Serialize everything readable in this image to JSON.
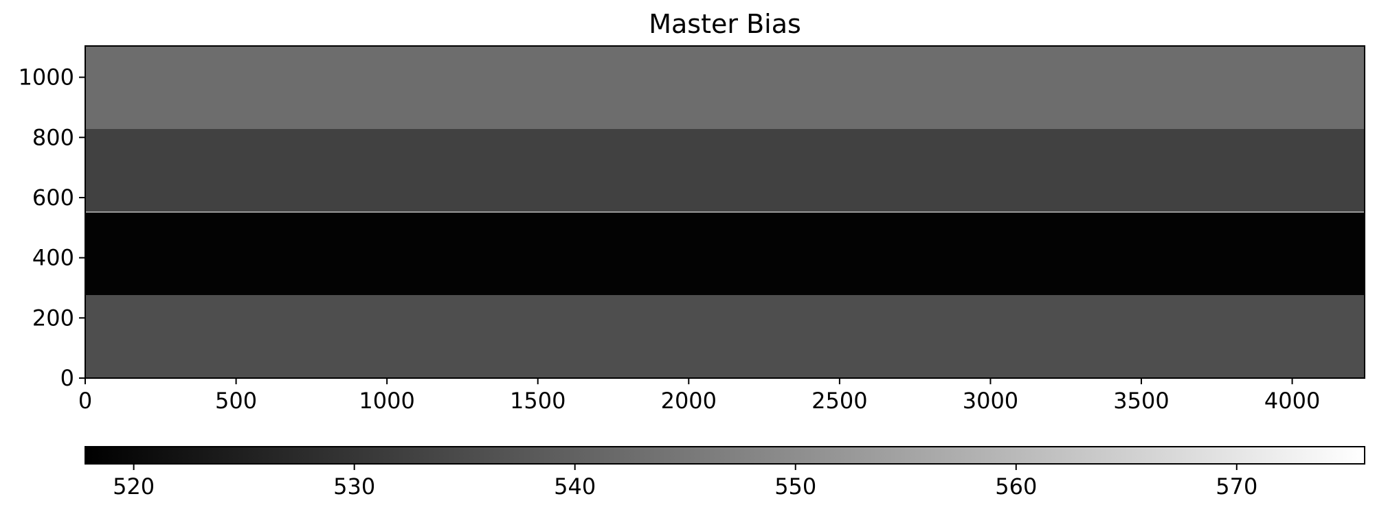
{
  "chart_data": {
    "type": "heatmap",
    "title": "Master Bias",
    "colormap": "gray",
    "xlim": [
      0,
      4240
    ],
    "ylim": [
      0,
      1104
    ],
    "xticks": [
      0,
      500,
      1000,
      1500,
      2000,
      2500,
      3000,
      3500,
      4000
    ],
    "yticks": [
      0,
      200,
      400,
      600,
      800,
      1000
    ],
    "x_tick_labels": [
      "0",
      "500",
      "1000",
      "1500",
      "2000",
      "2500",
      "3000",
      "3500",
      "4000"
    ],
    "y_tick_labels": [
      "0",
      "200",
      "400",
      "600",
      "800",
      "1000"
    ],
    "bands": [
      {
        "y0": 0,
        "y1": 276,
        "value": 535.5
      },
      {
        "y0": 276,
        "y1": 552,
        "value": 518.5
      },
      {
        "y0": 552,
        "y1": 828,
        "value": 532.5
      },
      {
        "y0": 828,
        "y1": 1104,
        "value": 542.5
      }
    ],
    "features": [
      {
        "type": "bright-row",
        "y": 552,
        "value": 553
      }
    ],
    "colorbar": {
      "orientation": "horizontal",
      "range": [
        517.8,
        575.8
      ],
      "ticks": [
        520,
        530,
        540,
        550,
        560,
        570
      ],
      "tick_labels": [
        "520",
        "530",
        "540",
        "550",
        "560",
        "570"
      ]
    }
  }
}
